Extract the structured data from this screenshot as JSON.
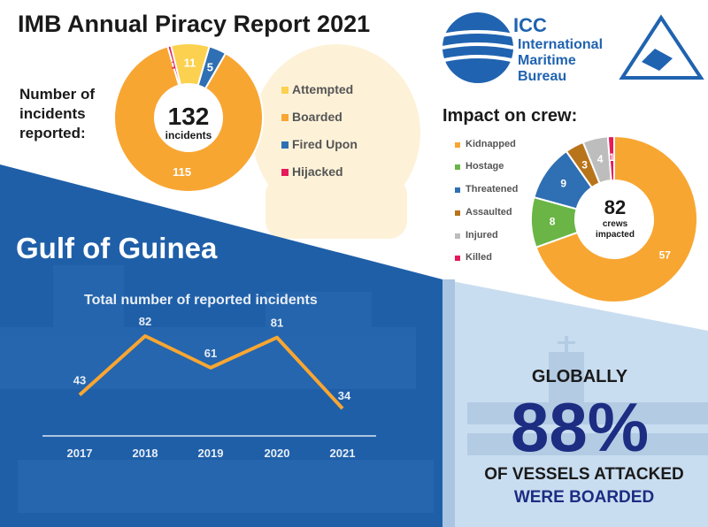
{
  "title": "IMB Annual Piracy Report 2021",
  "logo": {
    "short": "ICC",
    "line1": "International",
    "line2": "Maritime",
    "line3": "Bureau"
  },
  "chart_data": [
    {
      "type": "pie",
      "label": "Number of incidents reported:",
      "center_value": "132",
      "center_label": "incidents",
      "categories": [
        "Attempted",
        "Boarded",
        "Fired Upon",
        "Hijacked"
      ],
      "values": [
        11,
        115,
        5,
        1
      ],
      "colors": [
        "#fcd14f",
        "#f8a632",
        "#2f6fb3",
        "#e6195a"
      ]
    },
    {
      "type": "pie",
      "title": "Impact on crew:",
      "center_value": "82",
      "center_label": "crews impacted",
      "categories": [
        "Kidnapped",
        "Hostage",
        "Threatened",
        "Assaulted",
        "Injured",
        "Killed"
      ],
      "values": [
        57,
        8,
        9,
        3,
        4,
        1
      ],
      "colors": [
        "#f8a632",
        "#6ab545",
        "#2f6fb3",
        "#b8741a",
        "#bdbdbd",
        "#e6195a"
      ]
    },
    {
      "type": "line",
      "region": "Gulf of Guinea",
      "title": "Total number of reported incidents",
      "x": [
        "2017",
        "2018",
        "2019",
        "2020",
        "2021"
      ],
      "values": [
        43,
        82,
        61,
        81,
        34
      ],
      "color": "#f8a632"
    }
  ],
  "globally": {
    "line1": "GLOBALLY",
    "percent": "88%",
    "line2": "OF VESSELS ATTACKED",
    "line3": "WERE BOARDED"
  },
  "colors": {
    "navy": "#1c2d82",
    "blue_panel": "#1f5fa8",
    "light_panel": "#c9ddf0"
  }
}
